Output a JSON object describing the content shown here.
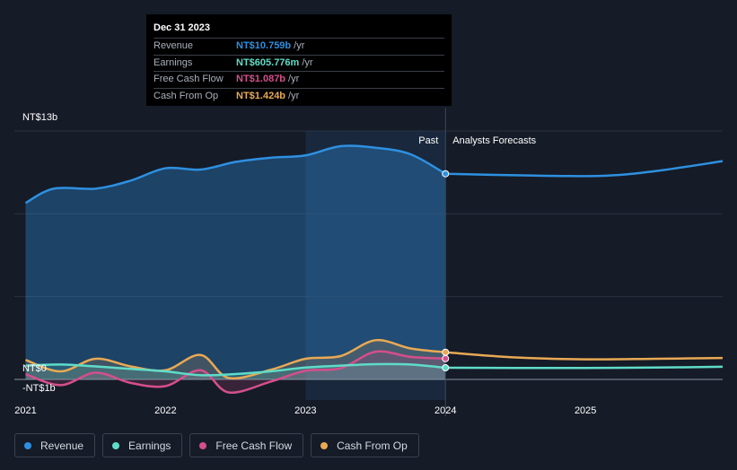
{
  "chart_data": {
    "type": "line",
    "title": "",
    "x_range": [
      2020.92,
      2025.98
    ],
    "y_range": [
      -1.0,
      13.0
    ],
    "y_axis_labels": [
      {
        "text": "NT$13b",
        "value": 13
      },
      {
        "text": "NT$0",
        "value": 0
      },
      {
        "text": "-NT$1b",
        "value": -1
      }
    ],
    "x_ticks": [
      {
        "label": "2021",
        "value": 2021.0
      },
      {
        "label": "2022",
        "value": 2022.0
      },
      {
        "label": "2023",
        "value": 2023.0
      },
      {
        "label": "2024",
        "value": 2024.0
      },
      {
        "label": "2025",
        "value": 2025.0
      }
    ],
    "divider_x": 2024.0,
    "highlight_start_x": 2023.0,
    "past_label": "Past",
    "forecast_label": "Analysts Forecasts",
    "series": [
      {
        "name": "Revenue",
        "color": "#2e90e0",
        "fill": true,
        "values": [
          [
            2021.0,
            9.23
          ],
          [
            2021.2,
            9.98
          ],
          [
            2021.5,
            9.98
          ],
          [
            2021.75,
            10.4
          ],
          [
            2022.0,
            11.05
          ],
          [
            2022.25,
            10.98
          ],
          [
            2022.5,
            11.38
          ],
          [
            2022.75,
            11.6
          ],
          [
            2023.0,
            11.72
          ],
          [
            2023.25,
            12.2
          ],
          [
            2023.5,
            12.12
          ],
          [
            2023.75,
            11.78
          ],
          [
            2024.0,
            10.76
          ]
        ],
        "forecast": [
          [
            2024.0,
            10.76
          ],
          [
            2024.5,
            10.68
          ],
          [
            2025.1,
            10.65
          ],
          [
            2025.5,
            10.9
          ],
          [
            2025.98,
            11.42
          ]
        ]
      },
      {
        "name": "Earnings",
        "color": "#5fdcc8",
        "fill": true,
        "values": [
          [
            2021.0,
            0.72
          ],
          [
            2021.25,
            0.78
          ],
          [
            2021.5,
            0.68
          ],
          [
            2021.75,
            0.55
          ],
          [
            2022.0,
            0.42
          ],
          [
            2022.25,
            0.22
          ],
          [
            2022.5,
            0.28
          ],
          [
            2022.75,
            0.42
          ],
          [
            2023.0,
            0.62
          ],
          [
            2023.25,
            0.72
          ],
          [
            2023.5,
            0.8
          ],
          [
            2023.75,
            0.78
          ],
          [
            2024.0,
            0.61
          ]
        ],
        "forecast": [
          [
            2024.0,
            0.61
          ],
          [
            2024.5,
            0.6
          ],
          [
            2025.0,
            0.6
          ],
          [
            2025.5,
            0.62
          ],
          [
            2025.98,
            0.66
          ]
        ]
      },
      {
        "name": "Free Cash Flow",
        "color": "#d44f8c",
        "fill": true,
        "values": [
          [
            2021.0,
            0.28
          ],
          [
            2021.25,
            -0.3
          ],
          [
            2021.5,
            0.35
          ],
          [
            2021.75,
            -0.18
          ],
          [
            2022.0,
            -0.35
          ],
          [
            2022.25,
            0.48
          ],
          [
            2022.45,
            -0.68
          ],
          [
            2022.75,
            -0.12
          ],
          [
            2023.0,
            0.45
          ],
          [
            2023.25,
            0.58
          ],
          [
            2023.5,
            1.45
          ],
          [
            2023.75,
            1.18
          ],
          [
            2024.0,
            1.09
          ]
        ]
      },
      {
        "name": "Cash From Op",
        "color": "#e8a954",
        "fill": true,
        "values": [
          [
            2021.0,
            1.02
          ],
          [
            2021.25,
            0.42
          ],
          [
            2021.5,
            1.08
          ],
          [
            2021.75,
            0.68
          ],
          [
            2022.0,
            0.48
          ],
          [
            2022.25,
            1.28
          ],
          [
            2022.45,
            0.08
          ],
          [
            2022.75,
            0.5
          ],
          [
            2023.0,
            1.08
          ],
          [
            2023.25,
            1.22
          ],
          [
            2023.5,
            2.05
          ],
          [
            2023.75,
            1.62
          ],
          [
            2024.0,
            1.42
          ]
        ],
        "forecast": [
          [
            2024.0,
            1.42
          ],
          [
            2024.5,
            1.15
          ],
          [
            2025.0,
            1.05
          ],
          [
            2025.5,
            1.08
          ],
          [
            2025.98,
            1.12
          ]
        ]
      }
    ]
  },
  "tooltip": {
    "date": "Dec 31 2023",
    "rows": [
      {
        "label": "Revenue",
        "value": "NT$10.759b",
        "unit": "/yr",
        "color": "#2e90e0"
      },
      {
        "label": "Earnings",
        "value": "NT$605.776m",
        "unit": "/yr",
        "color": "#5fdcc8"
      },
      {
        "label": "Free Cash Flow",
        "value": "NT$1.087b",
        "unit": "/yr",
        "color": "#d44f8c"
      },
      {
        "label": "Cash From Op",
        "value": "NT$1.424b",
        "unit": "/yr",
        "color": "#e8a954"
      }
    ]
  },
  "legend": [
    {
      "label": "Revenue",
      "color": "#2e90e0"
    },
    {
      "label": "Earnings",
      "color": "#5fdcc8"
    },
    {
      "label": "Free Cash Flow",
      "color": "#d44f8c"
    },
    {
      "label": "Cash From Op",
      "color": "#e8a954"
    }
  ]
}
